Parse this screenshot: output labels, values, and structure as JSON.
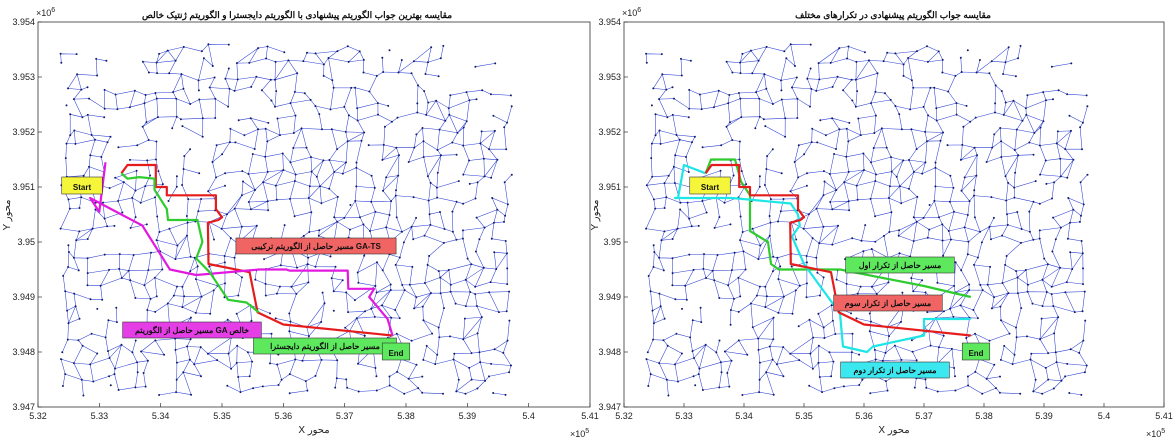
{
  "chart_data": [
    {
      "type": "line",
      "title": "مقایسه بهترین جواب الگوریتم پیشنهادی با الگوریتم دایجسترا و الگوریتم ژنتیک خالص",
      "xlabel": "X محور",
      "ylabel": "Y محور",
      "x_exponent": "×10^5",
      "y_exponent": "×10^6",
      "x_exp_base": "×10",
      "x_exp_power": "5",
      "y_exp_base": "×10",
      "y_exp_power": "6",
      "xlim": [
        5.32,
        5.41
      ],
      "ylim": [
        3.947,
        3.954
      ],
      "xticks": [
        "5.32",
        "5.33",
        "5.34",
        "5.35",
        "5.36",
        "5.37",
        "5.38",
        "5.39",
        "5.4",
        "5.41"
      ],
      "yticks": [
        "3.947",
        "3.948",
        "3.949",
        "3.95",
        "3.951",
        "3.952",
        "3.953",
        "3.954"
      ],
      "background": "road network (blue edges with dark node markers)",
      "series": [
        {
          "label_text": "مسیر حاصل از الگوریتم ترکیبی GA-TS",
          "color": "#e61c1c",
          "label_bg": "#f06464",
          "x": [
            5.3336,
            5.3346,
            5.3392,
            5.3392,
            5.341,
            5.341,
            5.349,
            5.349,
            5.35,
            5.3494,
            5.3477,
            5.3478,
            5.3545,
            5.3558,
            5.36,
            5.3778
          ],
          "y": [
            3.95125,
            3.9514,
            3.9514,
            3.951,
            3.951,
            3.95085,
            3.95085,
            3.9506,
            3.95045,
            3.9504,
            3.95035,
            3.9496,
            3.94945,
            3.94872,
            3.9485,
            3.9483
          ]
        },
        {
          "label_text": "مسیر حاصل از الگوریتم GA خالص",
          "color": "#e21ae0",
          "label_bg": "#e63ee6",
          "x": [
            5.331,
            5.33,
            5.3285,
            5.337,
            5.3415,
            5.3458,
            5.356,
            5.3605,
            5.361,
            5.3705,
            5.3706,
            5.3748,
            5.374,
            5.377,
            5.3778
          ],
          "y": [
            3.95145,
            3.95055,
            3.9508,
            3.9503,
            3.9495,
            3.9494,
            3.9495,
            3.9495,
            3.94948,
            3.94948,
            3.94915,
            3.94915,
            3.949,
            3.9486,
            3.9483
          ]
        },
        {
          "label_text": "مسیر حاصل از الگوریتم دایجسترا",
          "color": "#2ecc2e",
          "label_bg": "#5ee85e",
          "x": [
            5.3336,
            5.3346,
            5.3365,
            5.339,
            5.339,
            5.341,
            5.3412,
            5.3436,
            5.346,
            5.3468,
            5.3458,
            5.348,
            5.351,
            5.354,
            5.356
          ],
          "y": [
            3.95125,
            3.95115,
            3.95118,
            3.95115,
            3.95095,
            3.9506,
            3.9504,
            3.9504,
            3.9504,
            3.95,
            3.9497,
            3.94945,
            3.94895,
            3.9489,
            3.94872
          ]
        }
      ],
      "annotations": [
        {
          "text": "Start",
          "bg": "#f5f53a"
        },
        {
          "text": "End",
          "bg": "#5ee85e"
        }
      ]
    },
    {
      "type": "line",
      "title": "مقایسه جواب الگوریتم پیشنهادی در تکرارهای مختلف",
      "xlabel": "X محور",
      "ylabel": "Y محور",
      "x_exponent": "×10^5",
      "y_exponent": "×10^6",
      "x_exp_base": "×10",
      "x_exp_power": "5",
      "y_exp_base": "×10",
      "y_exp_power": "6",
      "xlim": [
        5.32,
        5.41
      ],
      "ylim": [
        3.947,
        3.954
      ],
      "xticks": [
        "5.32",
        "5.33",
        "5.34",
        "5.35",
        "5.36",
        "5.37",
        "5.38",
        "5.39",
        "5.4",
        "5.41"
      ],
      "yticks": [
        "3.947",
        "3.948",
        "3.949",
        "3.95",
        "3.951",
        "3.952",
        "3.953",
        "3.954"
      ],
      "background": "road network (blue edges with dark node markers)",
      "series": [
        {
          "label_text": "مسیر حاصل از تکرار اول",
          "color": "#2ecc2e",
          "label_bg": "#5ee85e",
          "x": [
            5.3336,
            5.3345,
            5.3385,
            5.3395,
            5.341,
            5.341,
            5.344,
            5.3445,
            5.3458,
            5.352,
            5.356,
            5.37,
            5.3778
          ],
          "y": [
            3.95125,
            3.9515,
            3.9515,
            3.9511,
            3.95085,
            3.9502,
            3.95,
            3.9496,
            3.9495,
            3.9495,
            3.9495,
            3.9492,
            3.949
          ]
        },
        {
          "label_text": "مسیر حاصل از تکرار دوم",
          "color": "#1ee6e6",
          "label_bg": "#3ce8f0",
          "x": [
            5.3336,
            5.33,
            5.329,
            5.3285,
            5.338,
            5.3478,
            5.349,
            5.3493,
            5.348,
            5.35,
            5.356,
            5.3565,
            5.3605,
            5.3615,
            5.37,
            5.37,
            5.3778
          ],
          "y": [
            3.95125,
            3.9514,
            3.9508,
            3.9508,
            3.9508,
            3.9507,
            3.9505,
            3.9503,
            3.9501,
            3.9496,
            3.9487,
            3.9481,
            3.948,
            3.9481,
            3.9483,
            3.9486,
            3.9486
          ]
        },
        {
          "label_text": "مسیر حاصل از تکرار سوم",
          "color": "#e61c1c",
          "label_bg": "#f06464",
          "x": [
            5.3336,
            5.3346,
            5.3392,
            5.3392,
            5.341,
            5.341,
            5.349,
            5.349,
            5.35,
            5.3494,
            5.3477,
            5.3478,
            5.3545,
            5.3558,
            5.36,
            5.3778
          ],
          "y": [
            3.95125,
            3.9514,
            3.9514,
            3.951,
            3.951,
            3.95085,
            3.95085,
            3.9506,
            3.95045,
            3.9504,
            3.95035,
            3.9496,
            3.94945,
            3.94872,
            3.9485,
            3.9483
          ]
        }
      ],
      "annotations": [
        {
          "text": "Start",
          "bg": "#f5f53a"
        },
        {
          "text": "End",
          "bg": "#5ee85e"
        }
      ]
    }
  ]
}
